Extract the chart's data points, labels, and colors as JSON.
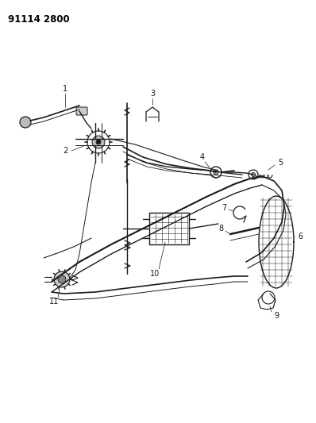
{
  "title": "91114 2800",
  "bg": "#ffffff",
  "lc": "#1a1a1a",
  "fig_w": 3.98,
  "fig_h": 5.33,
  "dpi": 100
}
